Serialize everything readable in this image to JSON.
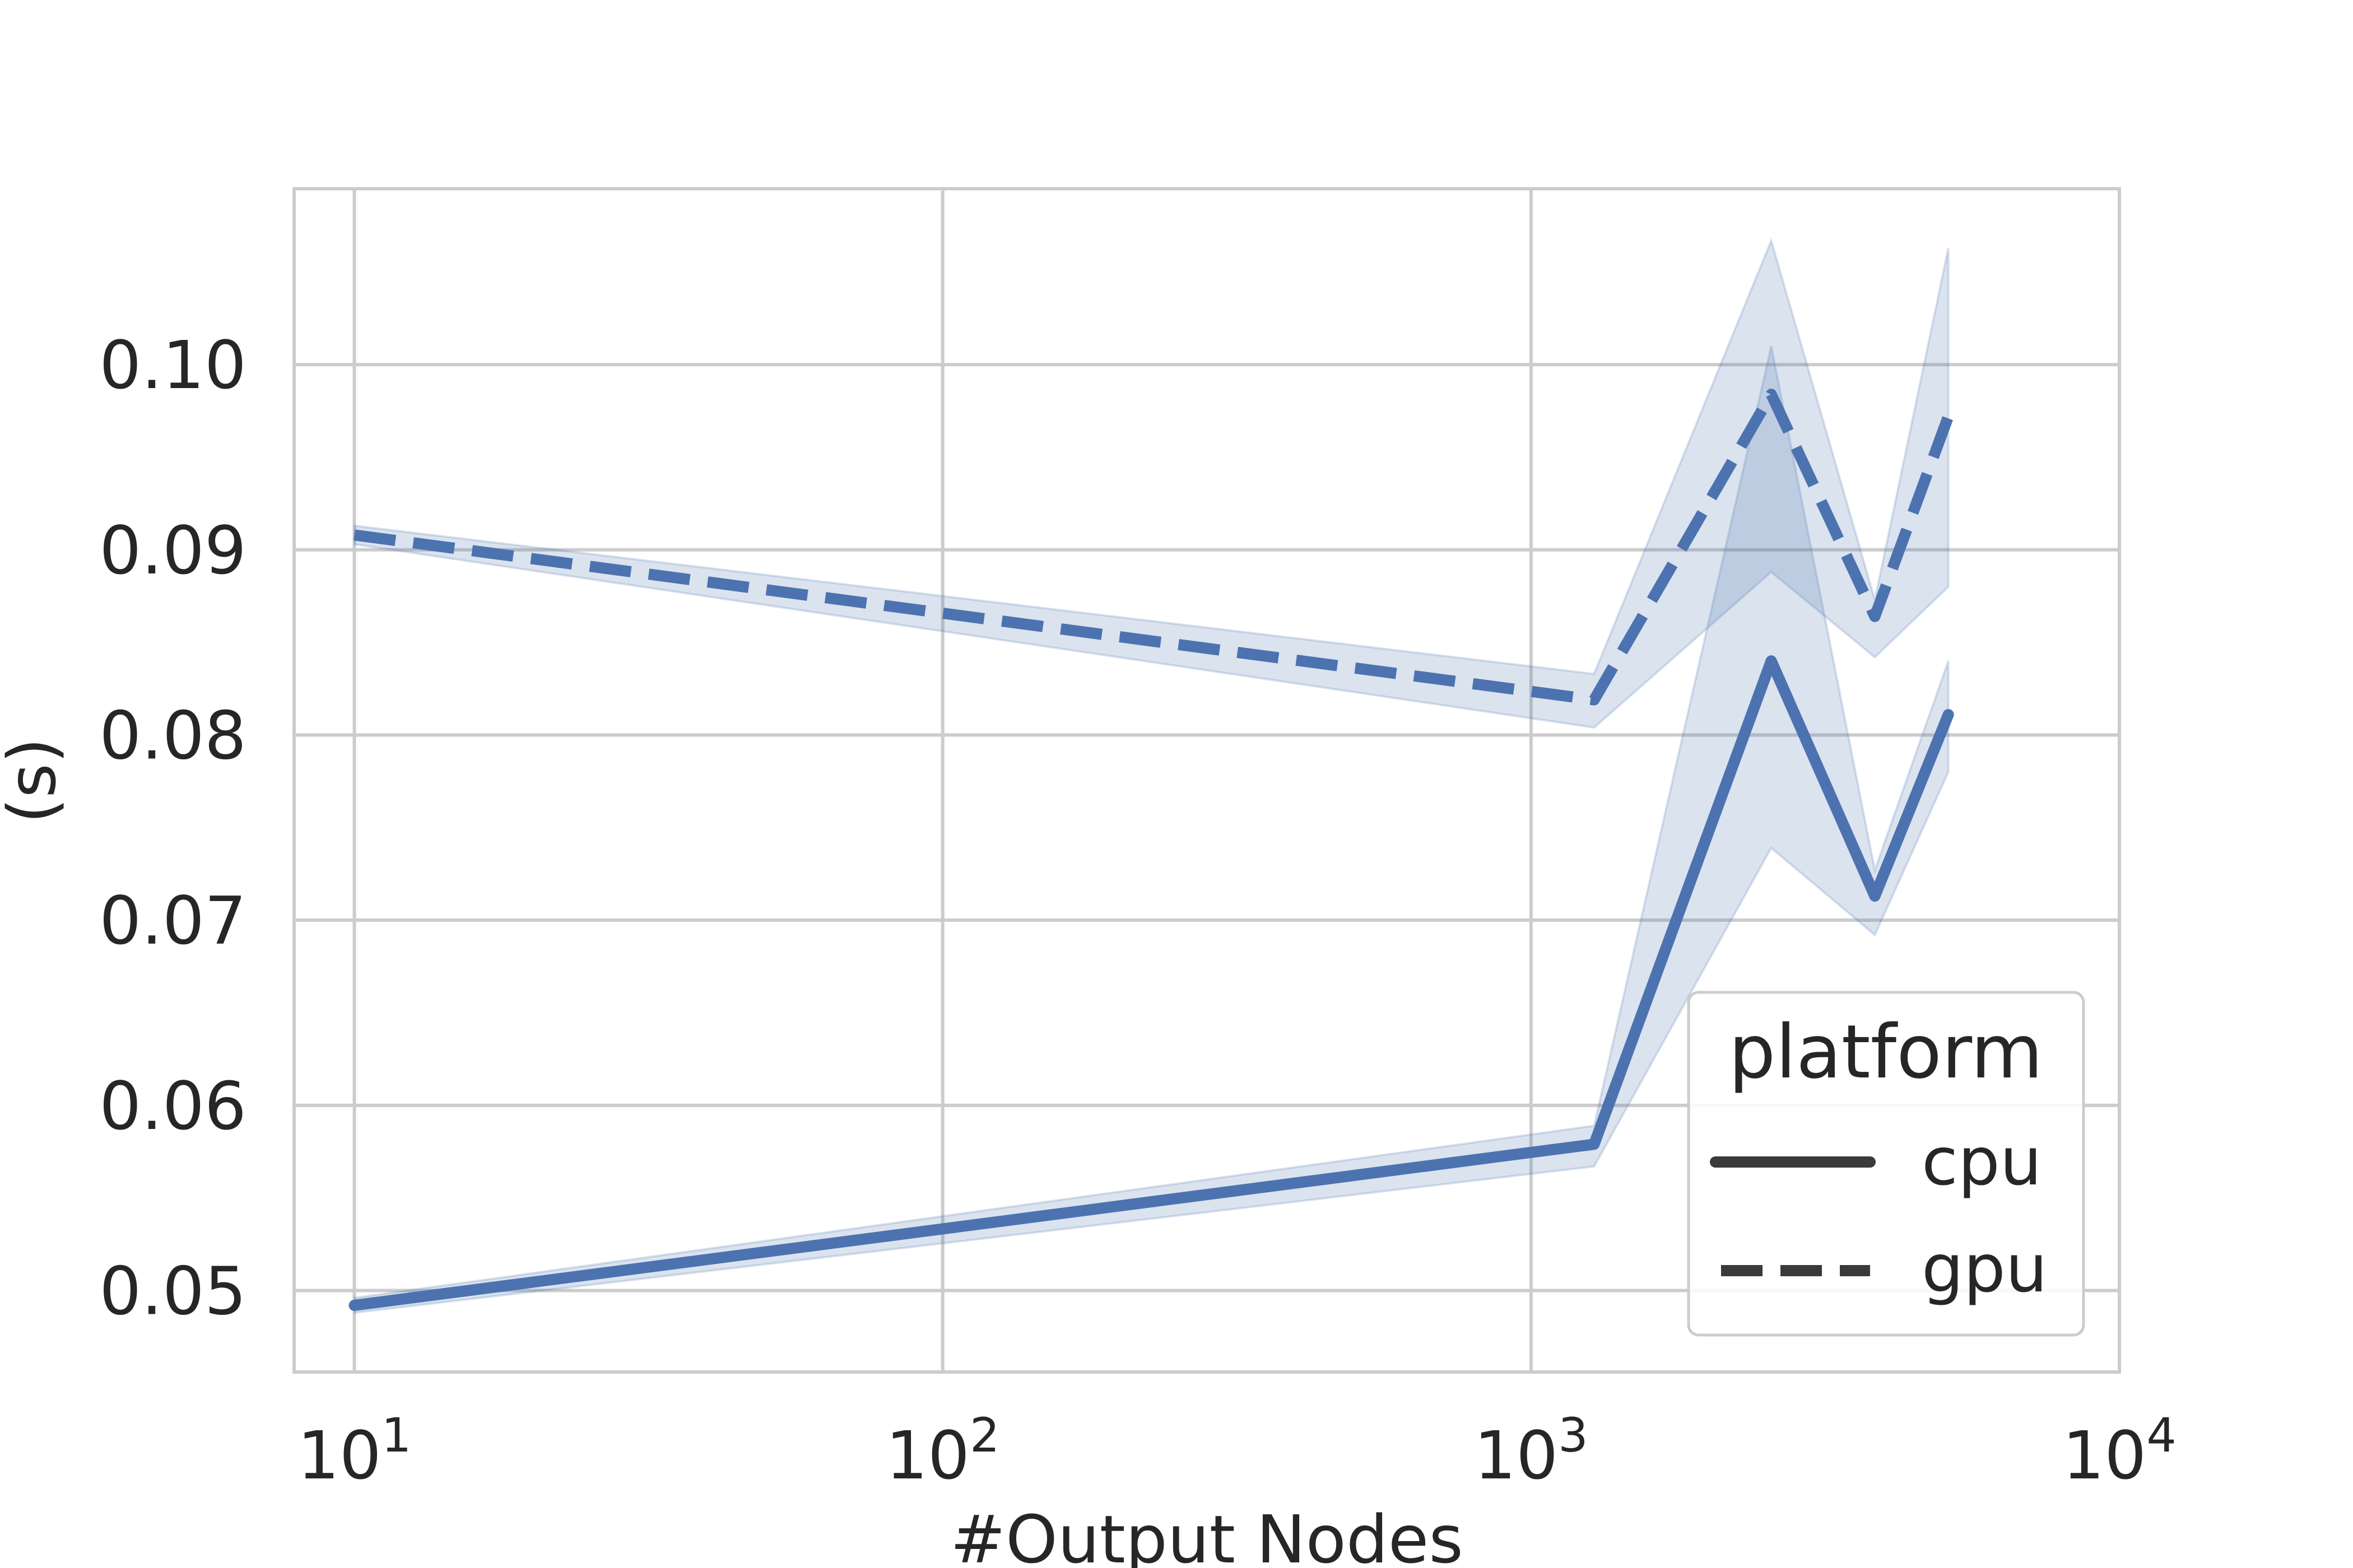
{
  "chart_data": {
    "type": "line",
    "title": "",
    "xlabel": "#Output Nodes",
    "ylabel": "(s)",
    "xscale": "log",
    "xlim": [
      7.9,
      10000
    ],
    "ylim": [
      0.0456,
      0.1095
    ],
    "x_ticks": [
      {
        "value": 10,
        "base": "10",
        "exp": "1"
      },
      {
        "value": 100,
        "base": "10",
        "exp": "2"
      },
      {
        "value": 1000,
        "base": "10",
        "exp": "3"
      },
      {
        "value": 10000,
        "base": "10",
        "exp": "4"
      }
    ],
    "y_ticks": [
      "0.05",
      "0.06",
      "0.07",
      "0.08",
      "0.09",
      "0.10"
    ],
    "grid": true,
    "legend": {
      "title": "platform",
      "placement": "lower-right"
    },
    "colors": {
      "line": "#4c72b0",
      "band": "#4c72b0",
      "grid": "#cccccc",
      "legend_line": "#3a3a3a"
    },
    "series": [
      {
        "name": "cpu",
        "style": "solid",
        "x": [
          10,
          1280,
          2560,
          3840,
          5120
        ],
        "y": [
          0.0492,
          0.0579,
          0.084,
          0.0713,
          0.0811
        ],
        "ci_low": [
          0.0488,
          0.0567,
          0.0739,
          0.0692,
          0.078
        ],
        "ci_high": [
          0.0496,
          0.0589,
          0.101,
          0.0727,
          0.084
        ]
      },
      {
        "name": "gpu",
        "style": "dashed",
        "x": [
          10,
          1280,
          2560,
          3840,
          5120
        ],
        "y": [
          0.0908,
          0.0819,
          0.0984,
          0.0864,
          0.0972
        ],
        "ci_low": [
          0.0903,
          0.0804,
          0.0888,
          0.0842,
          0.088
        ],
        "ci_high": [
          0.0913,
          0.0833,
          0.1067,
          0.0873,
          0.1063
        ]
      }
    ]
  }
}
